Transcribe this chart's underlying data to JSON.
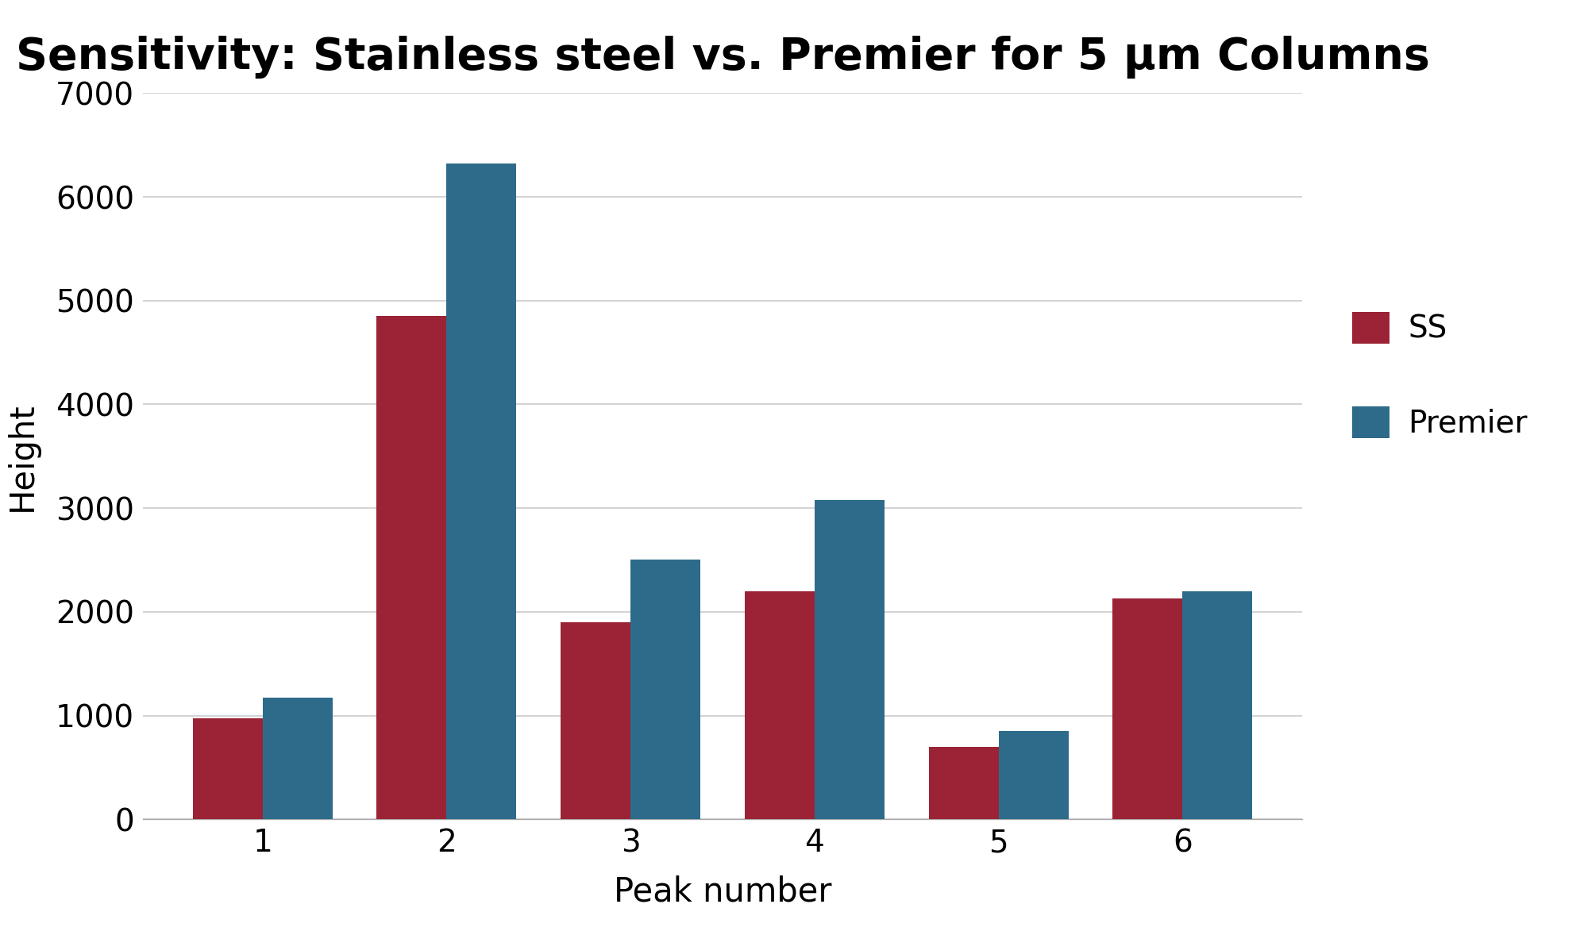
{
  "title": "Sensitivity: Stainless steel vs. Premier for 5 μm Columns",
  "xlabel": "Peak number",
  "ylabel": "Height",
  "categories": [
    1,
    2,
    3,
    4,
    5,
    6
  ],
  "ss_values": [
    975,
    4850,
    1900,
    2200,
    700,
    2125
  ],
  "premier_values": [
    1175,
    6325,
    2500,
    3075,
    850,
    2200
  ],
  "ss_color": "#9B2335",
  "premier_color": "#2E6B8A",
  "ylim": [
    0,
    7000
  ],
  "yticks": [
    0,
    1000,
    2000,
    3000,
    4000,
    5000,
    6000,
    7000
  ],
  "background_color": "#ffffff",
  "grid_color": "#cccccc",
  "title_fontsize": 40,
  "label_fontsize": 30,
  "tick_fontsize": 28,
  "legend_fontsize": 28,
  "bar_width": 0.38,
  "legend_labels": [
    "SS",
    "Premier"
  ]
}
